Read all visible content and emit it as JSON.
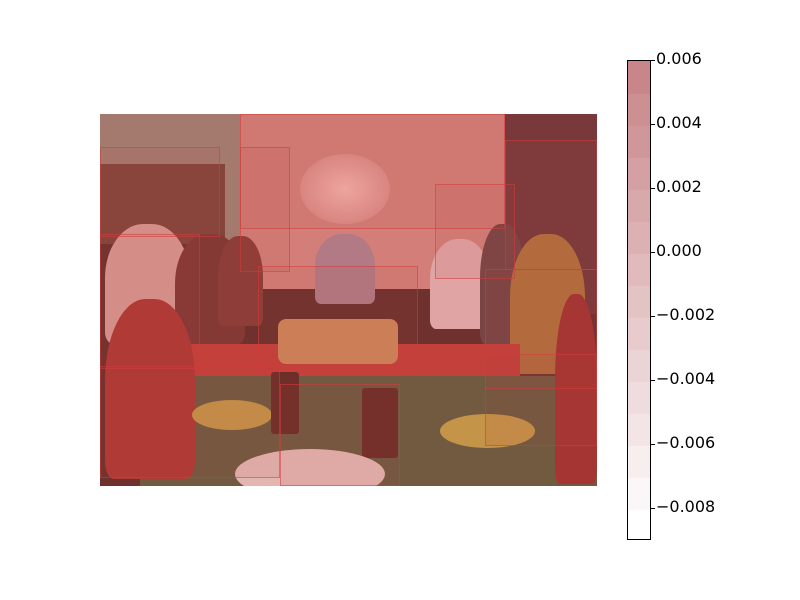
{
  "chart_data": {
    "type": "heatmap",
    "title": "",
    "colorbar": {
      "range": [
        -0.009,
        0.006
      ],
      "ticks": [
        {
          "value": 0.006,
          "label": "0.006"
        },
        {
          "value": 0.004,
          "label": "0.004"
        },
        {
          "value": 0.002,
          "label": "0.002"
        },
        {
          "value": 0.0,
          "label": "0.000"
        },
        {
          "value": -0.002,
          "label": "−0.002"
        },
        {
          "value": -0.004,
          "label": "−0.004"
        },
        {
          "value": -0.006,
          "label": "−0.006"
        },
        {
          "value": -0.008,
          "label": "−0.008"
        }
      ],
      "levels": 15,
      "color_low": "#ffffff",
      "color_high": "#c8868a"
    },
    "overlay_color": "#d24a4a",
    "background_image": "family dinner table photo"
  }
}
